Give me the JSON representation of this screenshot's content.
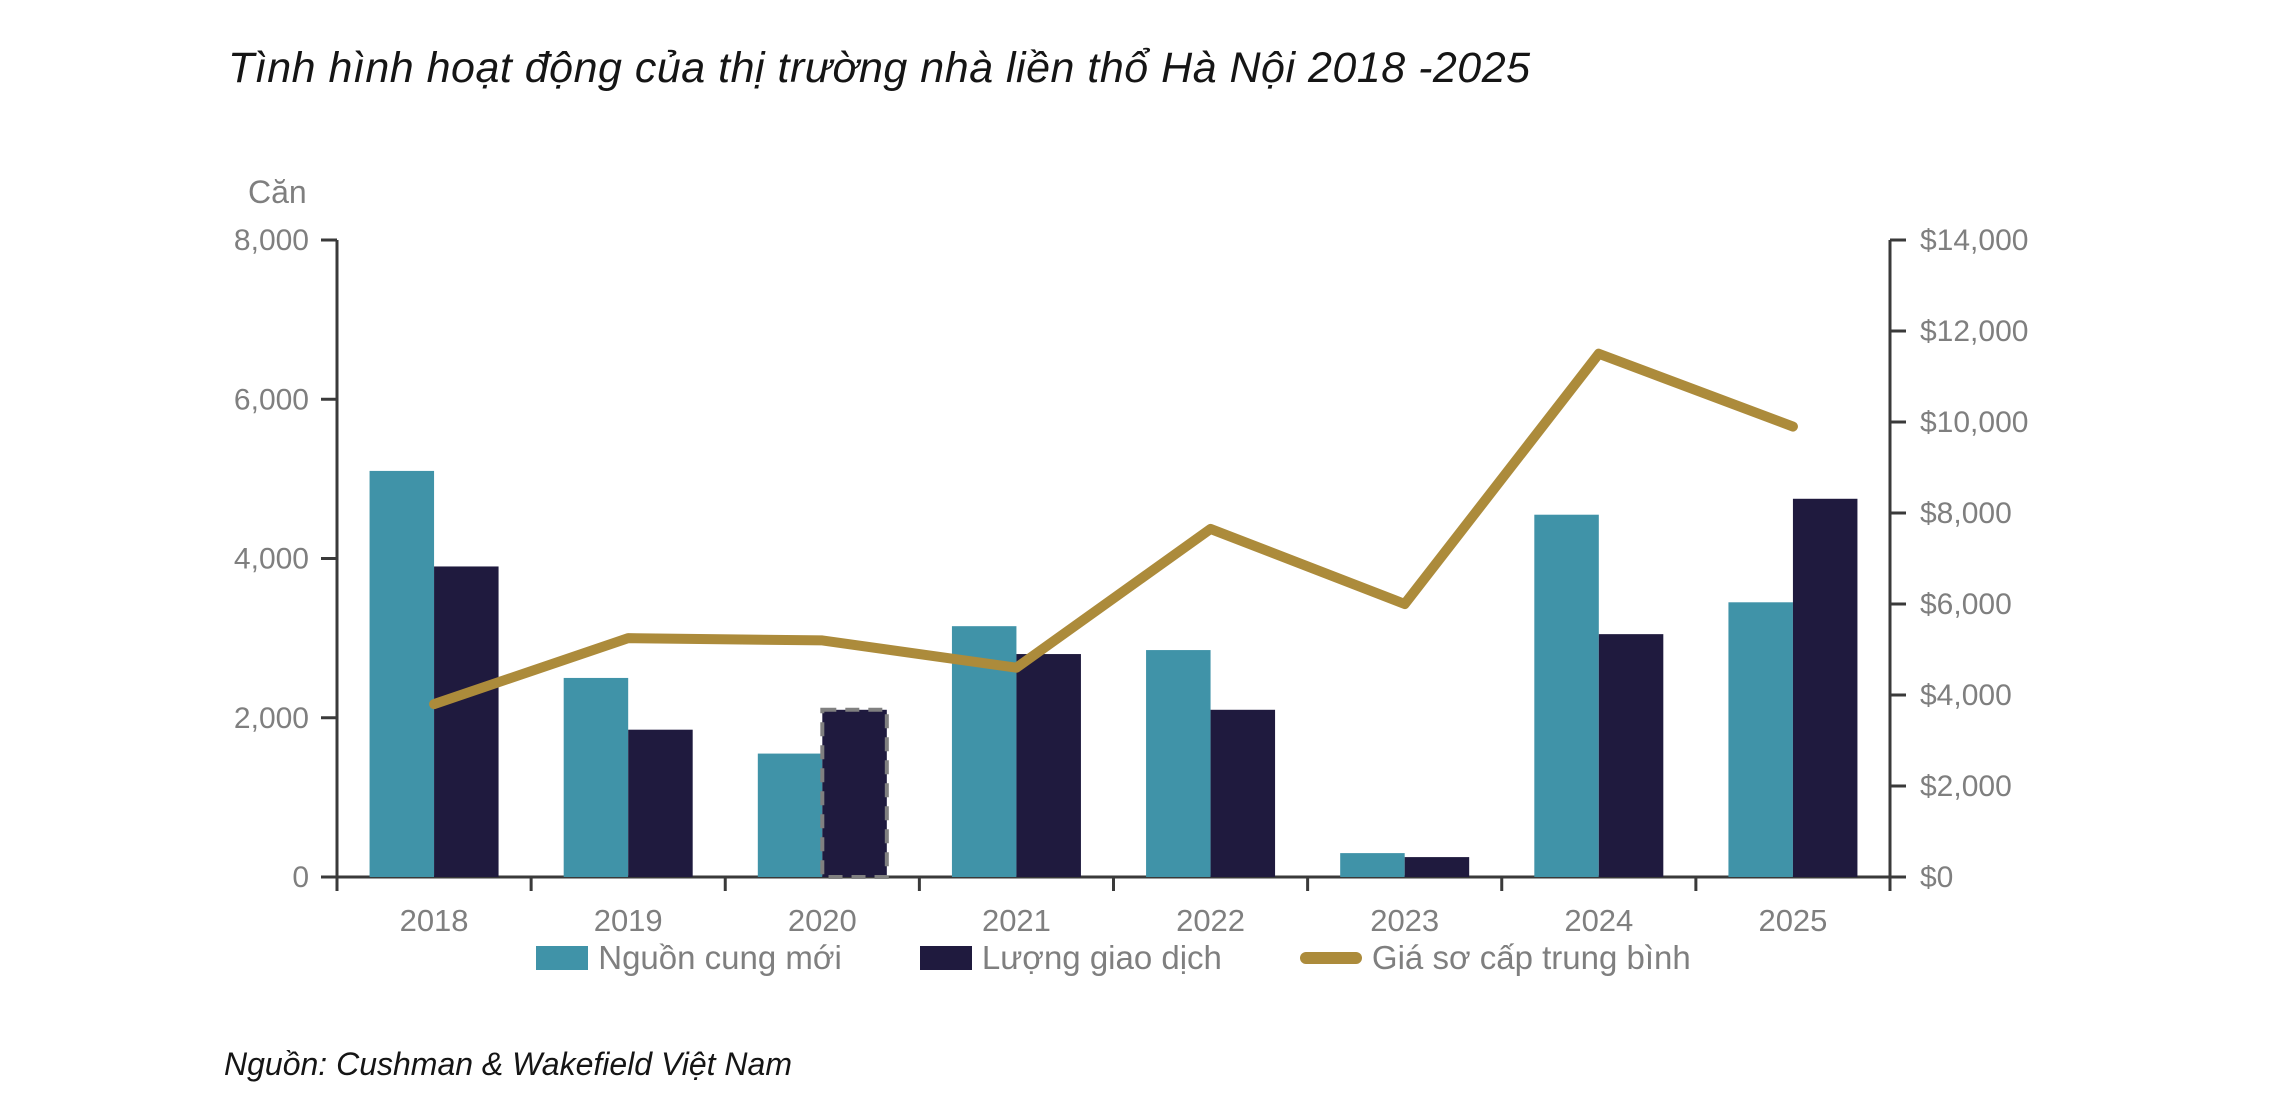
{
  "title": "Tình hình hoạt động của thị trường nhà liền thổ Hà Nội 2018 -2025",
  "source": "Nguồn: Cushman & Wakefield Việt Nam",
  "colors": {
    "new_supply": "#4093A8",
    "transactions": "#1F1A3E",
    "price_line": "#AC8B3B",
    "axis_line": "#3a3a3a",
    "tick_text": "#7f7f7f",
    "dashed_highlight": "#808080"
  },
  "chart_data": {
    "type": "bar",
    "subtype": "grouped-bars-with-line",
    "categories": [
      "2018",
      "2019",
      "2020",
      "2021",
      "2022",
      "2023",
      "2024",
      "2025"
    ],
    "series": [
      {
        "name": "Nguồn cung mới",
        "kind": "bar",
        "axis": "left",
        "color": "#4093A8",
        "values": [
          5100,
          2500,
          1550,
          3150,
          2850,
          300,
          4550,
          3450
        ]
      },
      {
        "name": "Lượng giao dịch",
        "kind": "bar",
        "axis": "left",
        "color": "#1F1A3E",
        "values": [
          3900,
          1850,
          2100,
          2800,
          2100,
          250,
          3050,
          4750
        ],
        "highlight_index": 2,
        "highlight_style": "gray-dashed-outline"
      },
      {
        "name": "Giá sơ cấp trung bình",
        "kind": "line",
        "axis": "right",
        "color": "#AC8B3B",
        "values": [
          3800,
          5250,
          5200,
          4600,
          7650,
          6000,
          11500,
          9900
        ]
      }
    ],
    "left_axis": {
      "label": "Căn",
      "min": 0,
      "max": 8000,
      "tick_step": 2000,
      "tick_labels": [
        "0",
        "2,000",
        "4,000",
        "6,000",
        "8,000"
      ]
    },
    "right_axis": {
      "min": 0,
      "max": 14000,
      "tick_step": 2000,
      "tick_labels": [
        "$0",
        "$2,000",
        "$4,000",
        "$6,000",
        "$8,000",
        "$10,000",
        "$12,000",
        "$14,000"
      ]
    },
    "grid": false,
    "legend_position": "bottom"
  }
}
